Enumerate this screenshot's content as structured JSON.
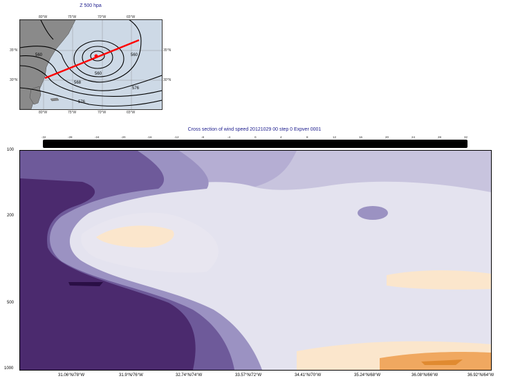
{
  "map": {
    "title": "Z 500 hpa",
    "lon_ticks": [
      "80°W",
      "75°W",
      "70°W",
      "65°W"
    ],
    "lat_ticks": [
      "35°N",
      "30°N"
    ],
    "contour_labels": [
      "560",
      "560",
      "560",
      "568",
      "576",
      "576",
      "568"
    ],
    "section_line_color": "#ff0000"
  },
  "cross_section": {
    "title": "Cross section of wind speed 20121029 00 step 0 Expver 0001",
    "colorbar_ticks": [
      "-32",
      "-28",
      "-24",
      "-20",
      "-16",
      "-12",
      "-8",
      "-4",
      "0",
      "4",
      "8",
      "12",
      "16",
      "20",
      "24",
      "28",
      "32"
    ],
    "y_ticks": [
      "100",
      "200",
      "500",
      "1000"
    ],
    "x_ticks": [
      "31.06°N/78°W",
      "31.9°N/76°W",
      "32.74°N/74°W",
      "33.57°N/72°W",
      "34.41°N/70°W",
      "35.24°N/68°W",
      "36.08°N/66°W",
      "36.92°N/64°W"
    ],
    "colors": {
      "purple_dark": "#4b2a6e",
      "purple_mid": "#6e5a9a",
      "purple_light": "#9b92c2",
      "lavender": "#c8c4de",
      "pale": "#e4e3ef",
      "peach": "#fbe6cc",
      "orange": "#f0a860",
      "orange_dark": "#e08a30"
    }
  }
}
